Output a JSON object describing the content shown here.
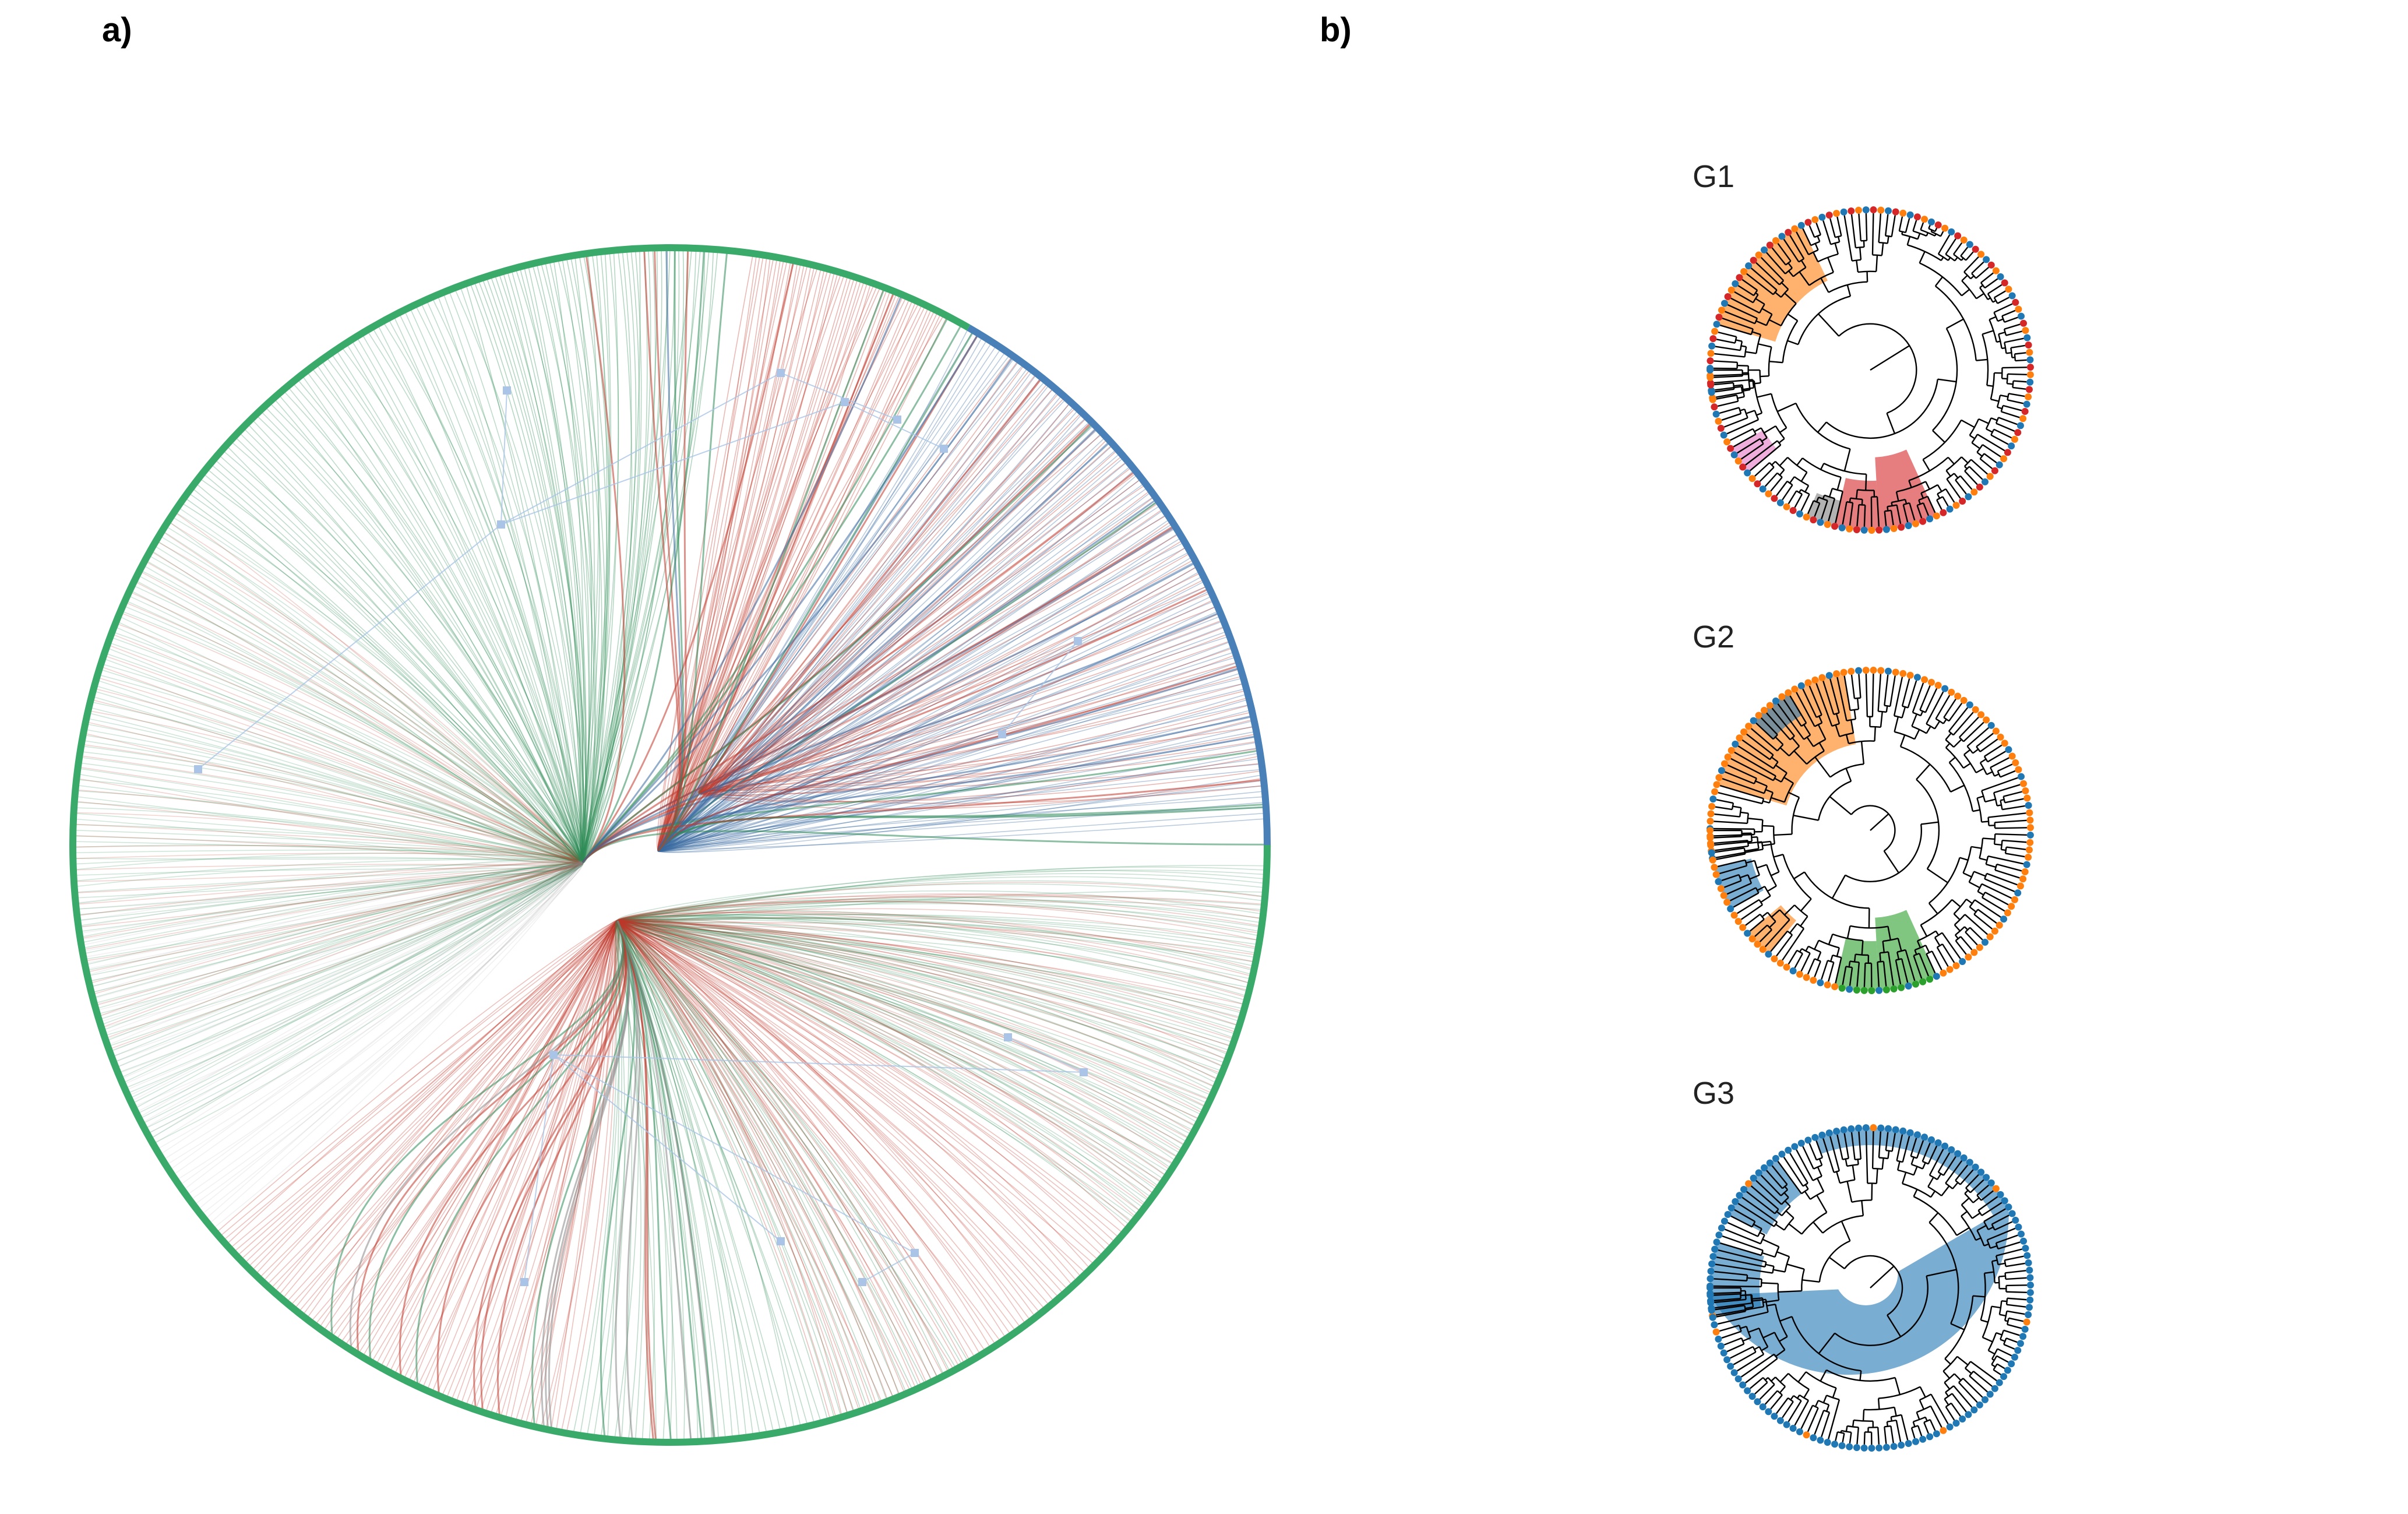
{
  "panel_a": {
    "label": "a)"
  },
  "panel_b": {
    "label": "b)",
    "trees": [
      {
        "label": "G1"
      },
      {
        "label": "G2"
      },
      {
        "label": "G3"
      }
    ]
  },
  "colors": {
    "circle_green": "#3aaa6a",
    "circle_blue": "#4a80b8",
    "edge_red": "#c0392b",
    "edge_green": "#2e8b57",
    "edge_blue": "#3a6aa0",
    "edge_gray": "#888888",
    "node_blue": "#a9c4e6",
    "group_red": "#d62728",
    "group_orange": "#ff7f0e",
    "group_green": "#2ca02c",
    "group_blue": "#1f77b4",
    "group_purple": "#9467bd",
    "group_pink": "#e377c2",
    "group_gray": "#7f7f7f"
  }
}
